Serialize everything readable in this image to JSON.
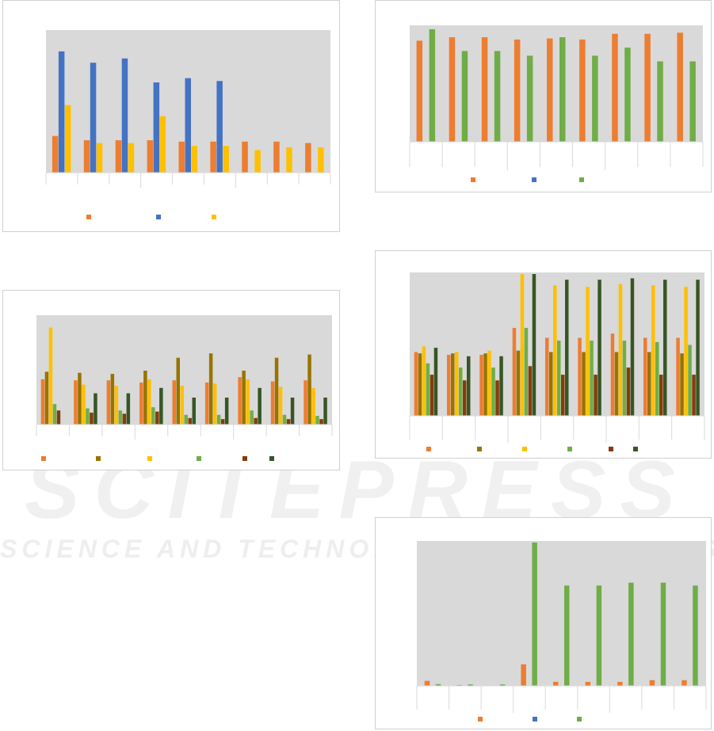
{
  "watermark": {
    "line1": "SCITEPRESS",
    "line2": "SCIENCE AND TECHNOLOGY PUBLICATIONS"
  },
  "chart_data": [
    {
      "id": "chart1",
      "type": "bar",
      "plot_bg": "#d9d9d9",
      "grid": false,
      "legend_position": "bottom",
      "ylim": [
        0,
        100
      ],
      "group_count": 9,
      "series": [
        {
          "color": "#ed7d31",
          "values": [
            26,
            23,
            23,
            23,
            22,
            22,
            22,
            22,
            21
          ]
        },
        {
          "color": "#4472c4",
          "values": [
            86,
            78,
            81,
            64,
            67,
            65,
            null,
            null,
            null
          ]
        },
        {
          "color": "#ffc000",
          "values": [
            48,
            21,
            21,
            40,
            19,
            19,
            16,
            18,
            18
          ]
        }
      ]
    },
    {
      "id": "chart2",
      "type": "bar",
      "plot_bg": "#d9d9d9",
      "grid": false,
      "legend_position": "bottom",
      "ylim": [
        0,
        100
      ],
      "group_count": 9,
      "series": [
        {
          "color": "#ed7d31",
          "values": [
            42,
            41,
            41,
            39,
            41,
            39,
            44,
            40,
            41
          ]
        },
        {
          "color": "#997300",
          "values": [
            49,
            48,
            47,
            50,
            62,
            66,
            50,
            62,
            65
          ]
        },
        {
          "color": "#ffc000",
          "values": [
            90,
            37,
            36,
            42,
            36,
            38,
            42,
            35,
            34
          ]
        },
        {
          "color": "#70ad47",
          "values": [
            19,
            15,
            13,
            16,
            9,
            9,
            13,
            9,
            8
          ]
        },
        {
          "color": "#843c0c",
          "values": [
            13,
            11,
            10,
            12,
            6,
            5,
            6,
            5,
            5
          ]
        },
        {
          "color": "#375623",
          "values": [
            0,
            29,
            29,
            34,
            25,
            25,
            34,
            25,
            25
          ]
        }
      ]
    },
    {
      "id": "chart3",
      "type": "bar",
      "plot_bg": "#d9d9d9",
      "grid": false,
      "legend_position": "bottom",
      "ylim": [
        0,
        100
      ],
      "group_count": 9,
      "series": [
        {
          "color": "#ed7d31",
          "values": [
            88,
            91,
            91,
            89,
            90,
            89,
            94,
            94,
            95
          ]
        },
        {
          "color": "#4472c4",
          "values": [
            null,
            null,
            null,
            null,
            null,
            null,
            null,
            null,
            null
          ]
        },
        {
          "color": "#70ad47",
          "values": [
            98,
            79,
            79,
            75,
            91,
            75,
            82,
            70,
            70
          ]
        }
      ]
    },
    {
      "id": "chart4",
      "type": "bar",
      "plot_bg": "#d9d9d9",
      "grid": false,
      "legend_position": "bottom",
      "ylim": [
        0,
        100
      ],
      "group_count": 9,
      "series": [
        {
          "color": "#ed7d31",
          "values": [
            45,
            43,
            43,
            62,
            55,
            55,
            58,
            55,
            55
          ]
        },
        {
          "color": "#997300",
          "values": [
            44,
            44,
            44,
            46,
            45,
            45,
            45,
            45,
            44
          ]
        },
        {
          "color": "#ffc000",
          "values": [
            49,
            45,
            46,
            100,
            92,
            91,
            93,
            92,
            91
          ]
        },
        {
          "color": "#70ad47",
          "values": [
            37,
            34,
            34,
            62,
            53,
            53,
            53,
            52,
            50
          ]
        },
        {
          "color": "#843c0c",
          "values": [
            29,
            25,
            25,
            35,
            29,
            29,
            34,
            29,
            29
          ]
        },
        {
          "color": "#375623",
          "values": [
            48,
            42,
            42,
            100,
            96,
            96,
            97,
            96,
            96
          ]
        }
      ]
    },
    {
      "id": "chart5",
      "type": "bar",
      "plot_bg": "#d9d9d9",
      "grid": false,
      "legend_position": "bottom",
      "ylim": [
        0,
        100
      ],
      "group_count": 9,
      "series": [
        {
          "color": "#ed7d31",
          "values": [
            3.5,
            0.6,
            0,
            15,
            2.8,
            2.8,
            2.8,
            4,
            4
          ]
        },
        {
          "color": "#4472c4",
          "values": [
            null,
            null,
            null,
            null,
            null,
            null,
            null,
            null,
            null
          ]
        },
        {
          "color": "#70ad47",
          "values": [
            1.2,
            1,
            1,
            100,
            70,
            70,
            72,
            72,
            70
          ]
        }
      ]
    }
  ]
}
